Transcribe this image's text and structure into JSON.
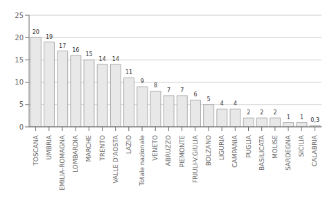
{
  "chart_data": {
    "type": "bar",
    "categories": [
      "TOSCANA",
      "UMBRIA",
      "EMILIA-ROMAGNA",
      "LOMBARDIA",
      "MARCHE",
      "TRENTO",
      "VALLE D'AOSTA",
      "LAZIO",
      "Totale nazionale",
      "VENETO",
      "ABRUZZO",
      "PIEMONTE",
      "FRIULI-V.GIULIA",
      "BOLZANO",
      "LIGURIA",
      "CAMPANIA",
      "PUGLIA",
      "BASILICATA",
      "MOLISE",
      "SARDEGNA",
      "SICILIA",
      "CALABRIA"
    ],
    "values": [
      20,
      19,
      17,
      16,
      15,
      14,
      14,
      11,
      9,
      8,
      7,
      7,
      6,
      5,
      4,
      4,
      2,
      2,
      2,
      1,
      1,
      0.3
    ],
    "value_labels": [
      "20",
      "19",
      "17",
      "16",
      "15",
      "14",
      "14",
      "11",
      "9",
      "8",
      "7",
      "7",
      "6",
      "5",
      "4",
      "4",
      "2",
      "2",
      "2",
      "1",
      "1",
      "0,3"
    ],
    "color": "#e8e8e8",
    "ylim": [
      0,
      25
    ],
    "yticks": [
      0,
      5,
      10,
      15,
      20,
      25
    ],
    "grid": true,
    "data_labels": true
  }
}
